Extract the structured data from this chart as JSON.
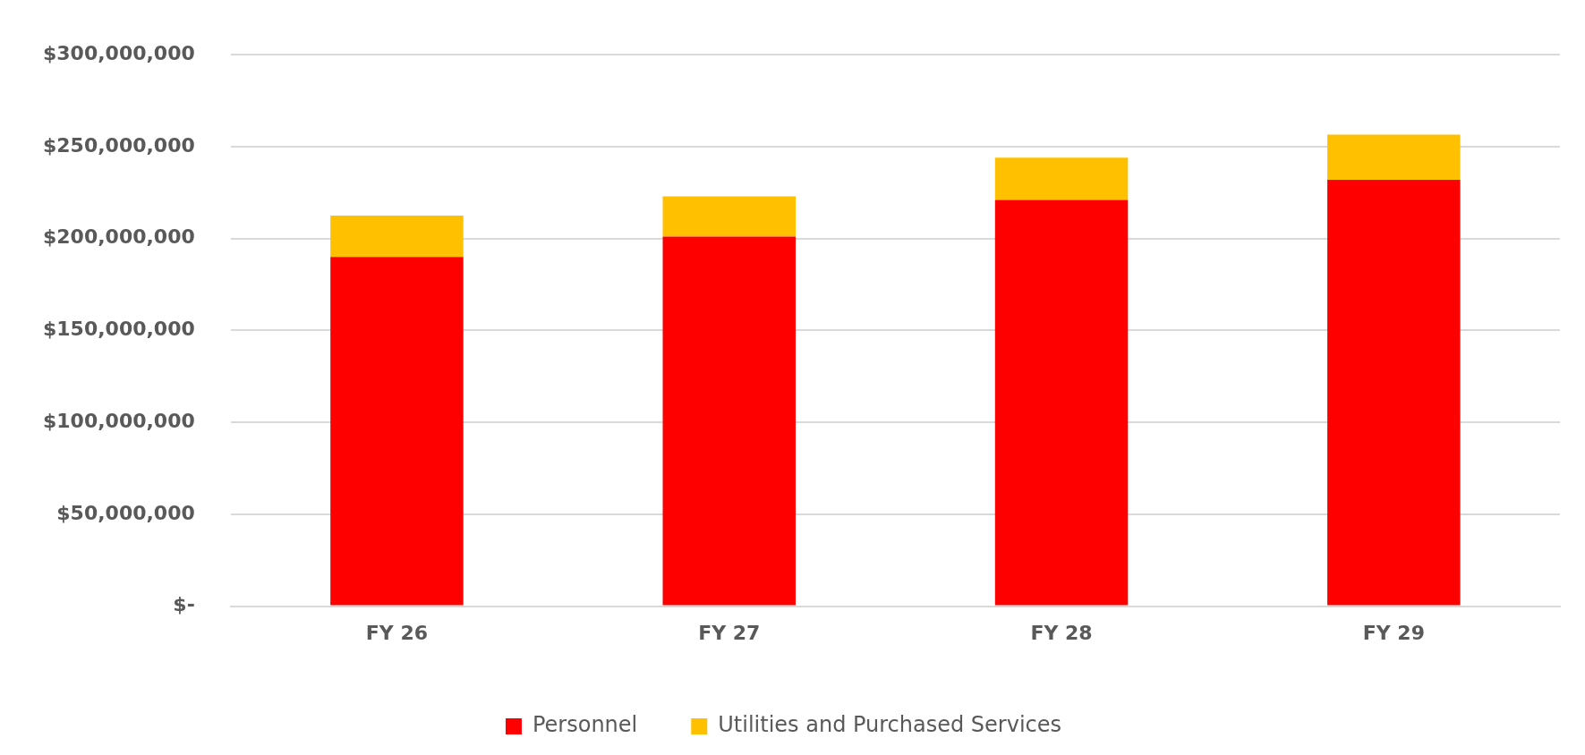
{
  "chart_data": {
    "type": "bar",
    "stacked": true,
    "categories": [
      "FY 26",
      "FY 27",
      "FY 28",
      "FY 29"
    ],
    "series": [
      {
        "name": "Personnel",
        "color": "#ff0000",
        "values": [
          190000000,
          201000000,
          221000000,
          232000000
        ]
      },
      {
        "name": "Utilities and Purchased Services",
        "color": "#ffc000",
        "values": [
          22500000,
          22000000,
          23000000,
          24500000
        ]
      }
    ],
    "ylim": [
      0,
      300000000
    ],
    "yticks": [
      {
        "value": 0,
        "label": "$-"
      },
      {
        "value": 50000000,
        "label": "$50,000,000"
      },
      {
        "value": 100000000,
        "label": "$100,000,000"
      },
      {
        "value": 150000000,
        "label": "$150,000,000"
      },
      {
        "value": 200000000,
        "label": "$200,000,000"
      },
      {
        "value": 250000000,
        "label": "$250,000,000"
      },
      {
        "value": 300000000,
        "label": "$300,000,000"
      }
    ],
    "grid": "y",
    "legend": "bottom"
  }
}
